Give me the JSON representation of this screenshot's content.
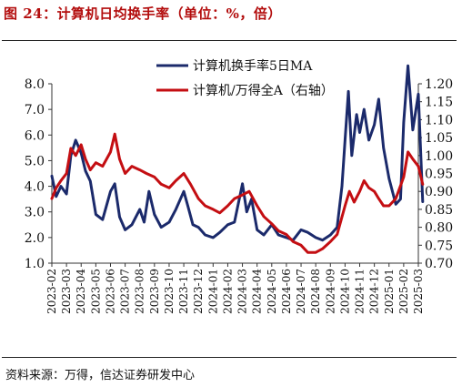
{
  "figure": {
    "title": "图 24：计算机日均换手率（单位：%，倍）",
    "source": "资料来源：万得，信达证券研发中心"
  },
  "chart_data": {
    "type": "line",
    "legend": {
      "placement": "top-center"
    },
    "grid": false,
    "x_ticks": [
      "2023-02",
      "2023-03",
      "2023-04",
      "2023-05",
      "2023-06",
      "2023-07",
      "2023-08",
      "2023-09",
      "2023-10",
      "2023-11",
      "2023-12",
      "2024-01",
      "2024-02",
      "2024-03",
      "2024-04",
      "2024-05",
      "2024-06",
      "2024-07",
      "2024-08",
      "2024-09",
      "2024-10",
      "2024-11",
      "2024-12",
      "2025-01",
      "2025-02",
      "2025-03"
    ],
    "y_left": {
      "ylim": [
        1.0,
        8.0
      ],
      "ticks": [
        "1.0",
        "2.0",
        "3.0",
        "4.0",
        "5.0",
        "6.0",
        "7.0",
        "8.0"
      ]
    },
    "y_right": {
      "ylim": [
        0.7,
        1.2
      ],
      "ticks": [
        "0.70",
        "0.75",
        "0.80",
        "0.85",
        "0.90",
        "0.95",
        "1.00",
        "1.05",
        "1.10",
        "1.15",
        "1.20"
      ]
    },
    "series": [
      {
        "name": "计算机换手率5日MA",
        "axis": "left",
        "color": "#1b2a6b",
        "points": [
          [
            "2023-02-01",
            4.4
          ],
          [
            "2023-02-10",
            3.6
          ],
          [
            "2023-02-20",
            4.0
          ],
          [
            "2023-03-01",
            3.7
          ],
          [
            "2023-03-10",
            5.2
          ],
          [
            "2023-03-20",
            5.8
          ],
          [
            "2023-04-01",
            5.3
          ],
          [
            "2023-04-10",
            4.6
          ],
          [
            "2023-04-20",
            4.2
          ],
          [
            "2023-05-01",
            2.9
          ],
          [
            "2023-05-15",
            2.7
          ],
          [
            "2023-06-01",
            3.8
          ],
          [
            "2023-06-10",
            4.1
          ],
          [
            "2023-06-20",
            2.8
          ],
          [
            "2023-07-01",
            2.3
          ],
          [
            "2023-07-15",
            2.5
          ],
          [
            "2023-08-01",
            3.1
          ],
          [
            "2023-08-10",
            2.6
          ],
          [
            "2023-08-20",
            3.8
          ],
          [
            "2023-09-01",
            2.9
          ],
          [
            "2023-09-15",
            2.4
          ],
          [
            "2023-10-01",
            2.6
          ],
          [
            "2023-10-15",
            3.1
          ],
          [
            "2023-11-01",
            3.8
          ],
          [
            "2023-11-10",
            3.2
          ],
          [
            "2023-11-20",
            2.5
          ],
          [
            "2023-12-01",
            2.4
          ],
          [
            "2023-12-15",
            2.1
          ],
          [
            "2024-01-01",
            2.0
          ],
          [
            "2024-01-15",
            2.2
          ],
          [
            "2024-02-01",
            2.5
          ],
          [
            "2024-02-15",
            2.6
          ],
          [
            "2024-03-01",
            4.1
          ],
          [
            "2024-03-10",
            3.0
          ],
          [
            "2024-03-20",
            3.5
          ],
          [
            "2024-04-01",
            2.3
          ],
          [
            "2024-04-15",
            2.1
          ],
          [
            "2024-05-01",
            2.5
          ],
          [
            "2024-05-15",
            2.1
          ],
          [
            "2024-06-01",
            2.0
          ],
          [
            "2024-06-15",
            1.9
          ],
          [
            "2024-07-01",
            2.3
          ],
          [
            "2024-07-15",
            2.2
          ],
          [
            "2024-08-01",
            2.0
          ],
          [
            "2024-08-15",
            1.9
          ],
          [
            "2024-09-01",
            2.1
          ],
          [
            "2024-09-15",
            2.4
          ],
          [
            "2024-09-25",
            4.0
          ],
          [
            "2024-10-01",
            5.8
          ],
          [
            "2024-10-08",
            7.7
          ],
          [
            "2024-10-15",
            5.2
          ],
          [
            "2024-10-25",
            6.8
          ],
          [
            "2024-11-01",
            6.1
          ],
          [
            "2024-11-10",
            7.0
          ],
          [
            "2024-11-20",
            5.8
          ],
          [
            "2024-12-01",
            6.4
          ],
          [
            "2024-12-10",
            7.4
          ],
          [
            "2024-12-20",
            5.5
          ],
          [
            "2025-01-01",
            4.3
          ],
          [
            "2025-01-15",
            3.3
          ],
          [
            "2025-01-25",
            3.5
          ],
          [
            "2025-02-01",
            6.5
          ],
          [
            "2025-02-10",
            8.7
          ],
          [
            "2025-02-20",
            6.2
          ],
          [
            "2025-03-01",
            7.6
          ],
          [
            "2025-03-10",
            3.4
          ]
        ]
      },
      {
        "name": "计算机/万得全A（右轴）",
        "axis": "right",
        "color": "#c40e12",
        "points": [
          [
            "2023-02-01",
            0.88
          ],
          [
            "2023-02-10",
            0.91
          ],
          [
            "2023-02-20",
            0.93
          ],
          [
            "2023-03-01",
            0.95
          ],
          [
            "2023-03-10",
            1.02
          ],
          [
            "2023-03-20",
            1.0
          ],
          [
            "2023-04-01",
            1.03
          ],
          [
            "2023-04-10",
            0.99
          ],
          [
            "2023-04-20",
            0.96
          ],
          [
            "2023-05-01",
            0.98
          ],
          [
            "2023-05-15",
            0.97
          ],
          [
            "2023-06-01",
            1.01
          ],
          [
            "2023-06-10",
            1.06
          ],
          [
            "2023-06-20",
            0.99
          ],
          [
            "2023-07-01",
            0.95
          ],
          [
            "2023-07-15",
            0.97
          ],
          [
            "2023-08-01",
            0.96
          ],
          [
            "2023-08-15",
            0.95
          ],
          [
            "2023-09-01",
            0.94
          ],
          [
            "2023-09-15",
            0.92
          ],
          [
            "2023-10-01",
            0.91
          ],
          [
            "2023-10-15",
            0.93
          ],
          [
            "2023-11-01",
            0.95
          ],
          [
            "2023-11-15",
            0.92
          ],
          [
            "2023-12-01",
            0.88
          ],
          [
            "2023-12-15",
            0.86
          ],
          [
            "2024-01-01",
            0.85
          ],
          [
            "2024-01-15",
            0.84
          ],
          [
            "2024-02-01",
            0.86
          ],
          [
            "2024-02-15",
            0.88
          ],
          [
            "2024-03-01",
            0.89
          ],
          [
            "2024-03-15",
            0.9
          ],
          [
            "2024-04-01",
            0.86
          ],
          [
            "2024-04-15",
            0.83
          ],
          [
            "2024-05-01",
            0.81
          ],
          [
            "2024-05-15",
            0.79
          ],
          [
            "2024-06-01",
            0.78
          ],
          [
            "2024-06-15",
            0.76
          ],
          [
            "2024-07-01",
            0.75
          ],
          [
            "2024-07-15",
            0.73
          ],
          [
            "2024-08-01",
            0.73
          ],
          [
            "2024-08-15",
            0.74
          ],
          [
            "2024-09-01",
            0.76
          ],
          [
            "2024-09-15",
            0.78
          ],
          [
            "2024-10-01",
            0.86
          ],
          [
            "2024-10-10",
            0.9
          ],
          [
            "2024-10-20",
            0.87
          ],
          [
            "2024-11-01",
            0.9
          ],
          [
            "2024-11-10",
            0.93
          ],
          [
            "2024-11-20",
            0.91
          ],
          [
            "2024-12-01",
            0.9
          ],
          [
            "2024-12-10",
            0.88
          ],
          [
            "2024-12-20",
            0.86
          ],
          [
            "2025-01-01",
            0.86
          ],
          [
            "2025-01-15",
            0.88
          ],
          [
            "2025-02-01",
            0.94
          ],
          [
            "2025-02-10",
            1.01
          ],
          [
            "2025-02-20",
            0.99
          ],
          [
            "2025-03-01",
            0.97
          ],
          [
            "2025-03-10",
            0.92
          ]
        ]
      }
    ]
  }
}
